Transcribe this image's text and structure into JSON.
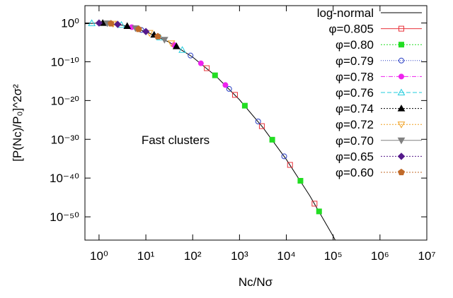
{
  "chart_data": {
    "type": "scatter",
    "annotation": "Fast clusters",
    "x_label": "Nc/Nσ",
    "y_label": "[P(Nc)/P₀]^2σ²",
    "log_x": true,
    "log_y": true,
    "legend": "top-right",
    "xlim": [
      0.5,
      10000000
    ],
    "ylim": [
      1e-56,
      30000
    ],
    "xticks": [
      {
        "value": 1,
        "label": "10⁰"
      },
      {
        "value": 10,
        "label": "10¹"
      },
      {
        "value": 100,
        "label": "10²"
      },
      {
        "value": 1000,
        "label": "10³"
      },
      {
        "value": 10000,
        "label": "10⁴"
      },
      {
        "value": 100000,
        "label": "10⁵"
      },
      {
        "value": 1000000,
        "label": "10⁶"
      },
      {
        "value": 10000000,
        "label": "10⁷"
      }
    ],
    "yticks": [
      {
        "value": 1,
        "label": "10⁰"
      },
      {
        "value": 1e-10,
        "label": "10⁻¹⁰"
      },
      {
        "value": 1e-20,
        "label": "10⁻²⁰"
      },
      {
        "value": 1e-30,
        "label": "10⁻³⁰"
      },
      {
        "value": 1e-40,
        "label": "10⁻⁴⁰"
      },
      {
        "value": 1e-50,
        "label": "10⁻⁵⁰"
      }
    ],
    "series": [
      {
        "name": "log-normal",
        "color": "#000000",
        "marker": "line",
        "dash": "",
        "x": [
          0.5,
          1,
          3.16,
          10,
          31.6,
          100,
          316,
          1000,
          3162,
          10000,
          31623,
          100000,
          120000
        ],
        "values": [
          0.63,
          1,
          0.28,
          0.0063,
          1.1e-05,
          1.6e-09,
          1.8e-14,
          1.6e-20,
          1.1e-27,
          6.3e-36,
          2.8e-45,
          1e-55,
          1.6e-57
        ]
      },
      {
        "name": "φ=0.805",
        "color": "#e8333b",
        "marker": "square-open",
        "dash": "",
        "x": [
          200,
          800,
          3000,
          12000,
          40000
        ],
        "values": [
          2.2e-12,
          2.9e-19,
          2.5e-27,
          2.5e-37,
          2.5e-47
        ]
      },
      {
        "name": "φ=0.80",
        "color": "#22dd22",
        "marker": "square",
        "dash": "2,2",
        "x": [
          300,
          1300,
          5000,
          20000,
          50000
        ],
        "values": [
          3.2e-14,
          4.7e-22,
          7.9e-31,
          2e-41,
          2.5e-49
        ]
      },
      {
        "name": "φ=0.79",
        "color": "#2a3fc4",
        "marker": "circle-open",
        "dash": "1,2",
        "x": [
          8,
          90,
          600,
          2500,
          9000
        ],
        "values": [
          0.016,
          4e-09,
          1e-17,
          4e-26,
          4e-35
        ]
      },
      {
        "name": "φ=0.78",
        "color": "#ee22ee",
        "marker": "circle",
        "dash": "6,2,1,2",
        "x": [
          5,
          40,
          150,
          500
        ],
        "values": [
          0.085,
          2.2e-06,
          4e-11,
          1e-16
        ]
      },
      {
        "name": "φ=0.76",
        "color": "#22ccdd",
        "marker": "triangle-open",
        "dash": "6,3",
        "x": [
          0.7,
          3,
          20,
          60
        ],
        "values": [
          0.9,
          0.32,
          0.00019,
          1.1e-07
        ]
      },
      {
        "name": "φ=0.74",
        "color": "#000000",
        "marker": "triangle",
        "dash": "2,2",
        "x": [
          1.2,
          4,
          15,
          45
        ],
        "values": [
          0.97,
          0.16,
          0.0009,
          9.8e-07
        ]
      },
      {
        "name": "φ=0.72",
        "color": "#f0a020",
        "marker": "triangle-down-open",
        "dash": "2,2",
        "x": [
          2,
          12,
          35
        ],
        "values": [
          0.63,
          0.0027,
          5.6e-06
        ]
      },
      {
        "name": "φ=0.70",
        "color": "#808080",
        "marker": "triangle-down",
        "dash": "",
        "x": [
          1.5,
          6,
          25
        ],
        "values": [
          0.86,
          0.047,
          5e-05
        ]
      },
      {
        "name": "φ=0.65",
        "color": "#551a8b",
        "marker": "diamond",
        "dash": "2,2",
        "x": [
          1,
          2.5,
          10
        ],
        "values": [
          1,
          0.45,
          0.0063
        ]
      },
      {
        "name": "φ=0.60",
        "color": "#c06a2a",
        "marker": "pentagon",
        "dash": "2,2",
        "x": [
          1.8,
          7,
          18
        ],
        "values": [
          0.72,
          0.027,
          0.00034
        ]
      }
    ]
  }
}
